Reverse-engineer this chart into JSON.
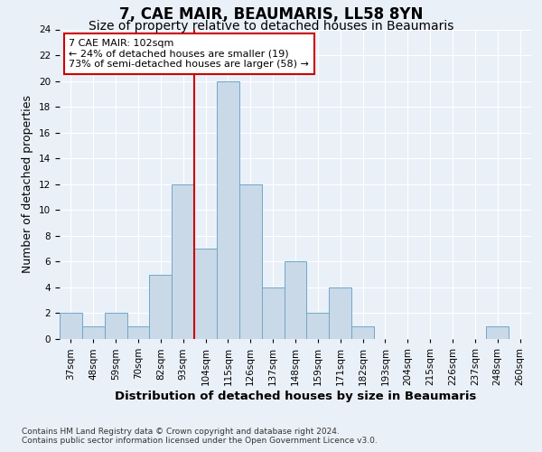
{
  "title": "7, CAE MAIR, BEAUMARIS, LL58 8YN",
  "subtitle": "Size of property relative to detached houses in Beaumaris",
  "xlabel_bottom": "Distribution of detached houses by size in Beaumaris",
  "ylabel": "Number of detached properties",
  "bar_labels": [
    "37sqm",
    "48sqm",
    "59sqm",
    "70sqm",
    "82sqm",
    "93sqm",
    "104sqm",
    "115sqm",
    "126sqm",
    "137sqm",
    "148sqm",
    "159sqm",
    "171sqm",
    "182sqm",
    "193sqm",
    "204sqm",
    "215sqm",
    "226sqm",
    "237sqm",
    "248sqm",
    "260sqm"
  ],
  "bar_values": [
    2,
    1,
    2,
    1,
    5,
    12,
    7,
    20,
    12,
    4,
    6,
    2,
    4,
    1,
    0,
    0,
    0,
    0,
    0,
    1,
    0
  ],
  "bar_color": "#c9d9e8",
  "bar_edge_color": "#6fa8c8",
  "vline_x": 5.5,
  "vline_color": "#cc0000",
  "annotation_text": "7 CAE MAIR: 102sqm\n← 24% of detached houses are smaller (19)\n73% of semi-detached houses are larger (58) →",
  "annotation_box_color": "#ffffff",
  "annotation_box_edge": "#cc0000",
  "ylim": [
    0,
    24
  ],
  "yticks": [
    0,
    2,
    4,
    6,
    8,
    10,
    12,
    14,
    16,
    18,
    20,
    22,
    24
  ],
  "bg_color": "#eaf0f8",
  "plot_bg_color": "#eaf0f8",
  "footnote1": "Contains HM Land Registry data © Crown copyright and database right 2024.",
  "footnote2": "Contains public sector information licensed under the Open Government Licence v3.0.",
  "title_fontsize": 12,
  "subtitle_fontsize": 10,
  "ylabel_fontsize": 9,
  "tick_fontsize": 7.5,
  "annot_fontsize": 8
}
